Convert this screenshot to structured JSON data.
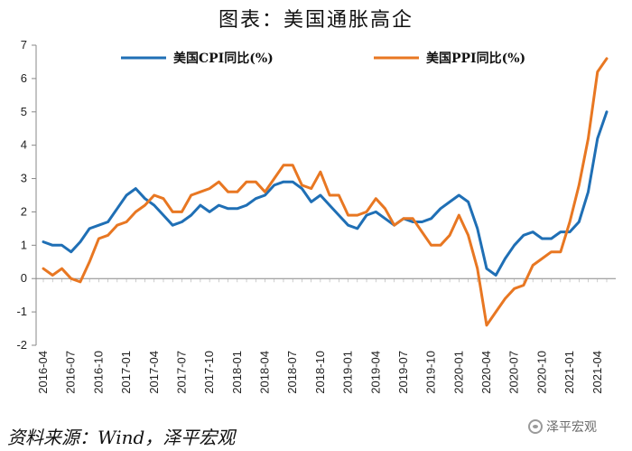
{
  "title": "图表：美国通胀高企",
  "source": "资料来源：Wind，泽平宏观",
  "watermark": "泽平宏观",
  "watermark_icon": "wechat-icon",
  "chart_data": {
    "type": "line",
    "x": [
      "2016-04",
      "2016-05",
      "2016-06",
      "2016-07",
      "2016-08",
      "2016-09",
      "2016-10",
      "2016-11",
      "2016-12",
      "2017-01",
      "2017-02",
      "2017-03",
      "2017-04",
      "2017-05",
      "2017-06",
      "2017-07",
      "2017-08",
      "2017-09",
      "2017-10",
      "2017-11",
      "2017-12",
      "2018-01",
      "2018-02",
      "2018-03",
      "2018-04",
      "2018-05",
      "2018-06",
      "2018-07",
      "2018-08",
      "2018-09",
      "2018-10",
      "2018-11",
      "2018-12",
      "2019-01",
      "2019-02",
      "2019-03",
      "2019-04",
      "2019-05",
      "2019-06",
      "2019-07",
      "2019-08",
      "2019-09",
      "2019-10",
      "2019-11",
      "2019-12",
      "2020-01",
      "2020-02",
      "2020-03",
      "2020-04",
      "2020-05",
      "2020-06",
      "2020-07",
      "2020-08",
      "2020-09",
      "2020-10",
      "2020-11",
      "2020-12",
      "2021-01",
      "2021-02",
      "2021-03",
      "2021-04",
      "2021-05"
    ],
    "xticks": [
      "2016-04",
      "2016-07",
      "2016-10",
      "2017-01",
      "2017-04",
      "2017-07",
      "2017-10",
      "2018-01",
      "2018-04",
      "2018-07",
      "2018-10",
      "2019-01",
      "2019-04",
      "2019-07",
      "2019-10",
      "2020-01",
      "2020-04",
      "2020-07",
      "2020-10",
      "2021-01",
      "2021-04"
    ],
    "ylim": [
      -2,
      7
    ],
    "yticks": [
      -2,
      -1,
      0,
      1,
      2,
      3,
      4,
      5,
      6,
      7
    ],
    "legend_position": "top",
    "series": [
      {
        "name": "美国CPI同比(%)",
        "color": "#1f6fb5",
        "values": [
          1.1,
          1.0,
          1.0,
          0.8,
          1.1,
          1.5,
          1.6,
          1.7,
          2.1,
          2.5,
          2.7,
          2.4,
          2.2,
          1.9,
          1.6,
          1.7,
          1.9,
          2.2,
          2.0,
          2.2,
          2.1,
          2.1,
          2.2,
          2.4,
          2.5,
          2.8,
          2.9,
          2.9,
          2.7,
          2.3,
          2.5,
          2.2,
          1.9,
          1.6,
          1.5,
          1.9,
          2.0,
          1.8,
          1.6,
          1.8,
          1.7,
          1.7,
          1.8,
          2.1,
          2.3,
          2.5,
          2.3,
          1.5,
          0.3,
          0.1,
          0.6,
          1.0,
          1.3,
          1.4,
          1.2,
          1.2,
          1.4,
          1.4,
          1.7,
          2.6,
          4.2,
          5.0
        ]
      },
      {
        "name": "美国PPI同比(%)",
        "color": "#e87722",
        "values": [
          0.3,
          0.1,
          0.3,
          0.0,
          -0.1,
          0.5,
          1.2,
          1.3,
          1.6,
          1.7,
          2.0,
          2.2,
          2.5,
          2.4,
          2.0,
          2.0,
          2.5,
          2.6,
          2.7,
          2.9,
          2.6,
          2.6,
          2.9,
          2.9,
          2.6,
          3.0,
          3.4,
          3.4,
          2.8,
          2.7,
          3.2,
          2.5,
          2.5,
          1.9,
          1.9,
          2.0,
          2.4,
          2.1,
          1.6,
          1.8,
          1.8,
          1.4,
          1.0,
          1.0,
          1.3,
          1.9,
          1.3,
          0.3,
          -1.4,
          -1.0,
          -0.6,
          -0.3,
          -0.2,
          0.4,
          0.6,
          0.8,
          0.8,
          1.7,
          2.8,
          4.2,
          6.2,
          6.6
        ]
      }
    ]
  }
}
